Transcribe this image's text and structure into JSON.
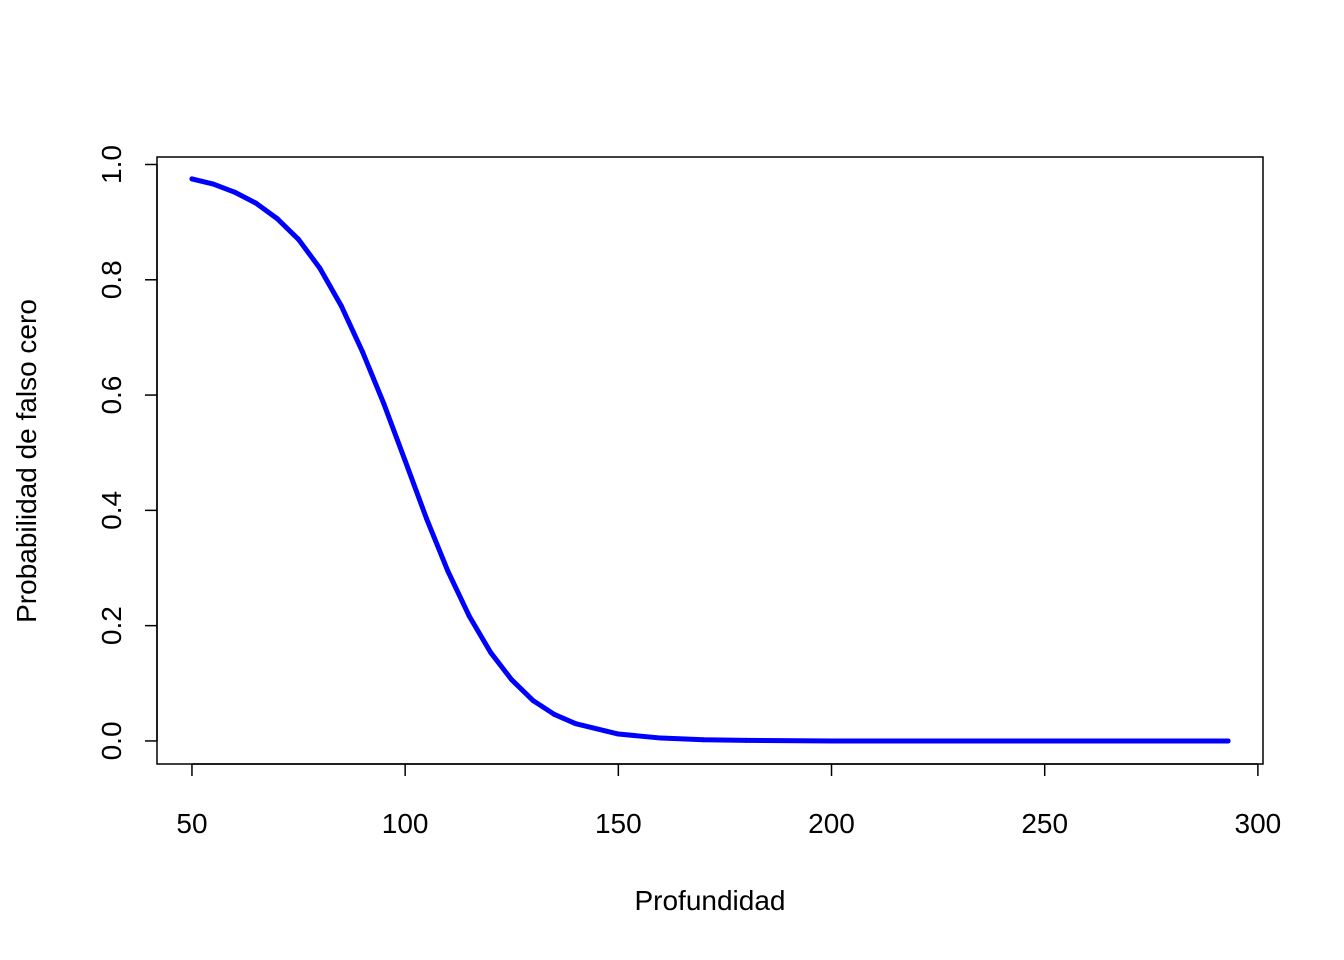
{
  "chart_data": {
    "type": "line",
    "title": "",
    "xlabel": "Profundidad",
    "ylabel": "Probabilidad de falso cero",
    "xlim": [
      41.8,
      301.2
    ],
    "ylim": [
      -0.04,
      1.013
    ],
    "x_ticks": [
      50,
      100,
      150,
      200,
      250,
      300
    ],
    "y_ticks": [
      0,
      0.2,
      0.4,
      0.6,
      0.8,
      1.0
    ],
    "x_tick_labels": [
      "50",
      "100",
      "150",
      "200",
      "250",
      "300"
    ],
    "y_tick_labels": [
      "0.0",
      "0.2",
      "0.4",
      "0.6",
      "0.8",
      "1.0"
    ],
    "grid": false,
    "legend": "none",
    "line_color": "#0000ff",
    "series": [
      {
        "x": [
          50,
          55,
          60,
          65,
          70,
          75,
          80,
          85,
          90,
          95,
          100,
          105,
          110,
          115,
          120,
          125,
          130,
          135,
          140,
          150,
          160,
          170,
          180,
          200,
          220,
          240,
          260,
          280,
          293
        ],
        "y": [
          0.975,
          0.966,
          0.952,
          0.933,
          0.906,
          0.87,
          0.82,
          0.755,
          0.675,
          0.585,
          0.486,
          0.386,
          0.295,
          0.217,
          0.154,
          0.106,
          0.07,
          0.046,
          0.03,
          0.012,
          0.005,
          0.002,
          0.001,
          0.0,
          0.0,
          0.0,
          0.0,
          0.0,
          0.0
        ]
      }
    ]
  }
}
